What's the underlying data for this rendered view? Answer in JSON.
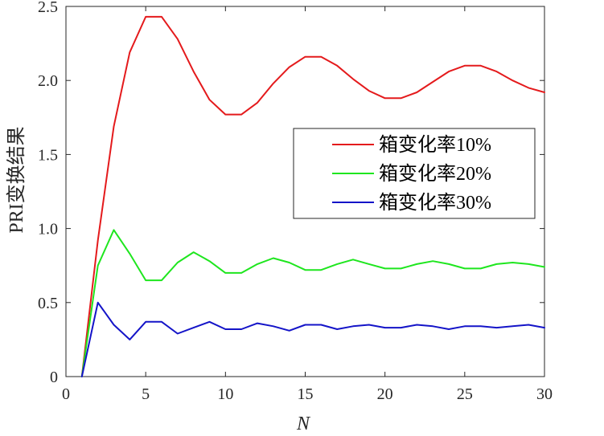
{
  "chart_data": {
    "type": "line",
    "xlabel": "N",
    "ylabel": "PRI变换结果",
    "xlim": [
      0,
      30
    ],
    "ylim": [
      0,
      2.5
    ],
    "xticks": [
      0,
      5,
      10,
      15,
      20,
      25,
      30
    ],
    "xtick_labels": [
      "0",
      "5",
      "10",
      "15",
      "20",
      "25",
      "30"
    ],
    "yticks": [
      0,
      0.5,
      1.0,
      1.5,
      2.0,
      2.5
    ],
    "ytick_labels": [
      "0",
      "0.5",
      "1.0",
      "1.5",
      "2.0",
      "2.5"
    ],
    "grid": false,
    "legend_position": "right",
    "x": [
      1,
      2,
      3,
      4,
      5,
      6,
      7,
      8,
      9,
      10,
      11,
      12,
      13,
      14,
      15,
      16,
      17,
      18,
      19,
      20,
      21,
      22,
      23,
      24,
      25,
      26,
      27,
      28,
      29,
      30
    ],
    "series": [
      {
        "name": "箱变化率10%",
        "color": "#e41a1c",
        "values": [
          0,
          0.92,
          1.69,
          2.19,
          2.43,
          2.43,
          2.28,
          2.06,
          1.87,
          1.77,
          1.77,
          1.85,
          1.98,
          2.09,
          2.16,
          2.16,
          2.1,
          2.01,
          1.93,
          1.88,
          1.88,
          1.92,
          1.99,
          2.06,
          2.1,
          2.1,
          2.06,
          2.0,
          1.95,
          1.92
        ]
      },
      {
        "name": "箱变化率20%",
        "color": "#1ee61e",
        "values": [
          0,
          0.75,
          0.99,
          0.83,
          0.65,
          0.65,
          0.77,
          0.84,
          0.78,
          0.7,
          0.7,
          0.76,
          0.8,
          0.77,
          0.72,
          0.72,
          0.76,
          0.79,
          0.76,
          0.73,
          0.73,
          0.76,
          0.78,
          0.76,
          0.73,
          0.73,
          0.76,
          0.77,
          0.76,
          0.74
        ]
      },
      {
        "name": "箱变化率30%",
        "color": "#1414c8",
        "values": [
          0,
          0.5,
          0.35,
          0.25,
          0.37,
          0.37,
          0.29,
          0.33,
          0.37,
          0.32,
          0.32,
          0.36,
          0.34,
          0.31,
          0.35,
          0.35,
          0.32,
          0.34,
          0.35,
          0.33,
          0.33,
          0.35,
          0.34,
          0.32,
          0.34,
          0.34,
          0.33,
          0.34,
          0.35,
          0.33
        ]
      }
    ]
  }
}
